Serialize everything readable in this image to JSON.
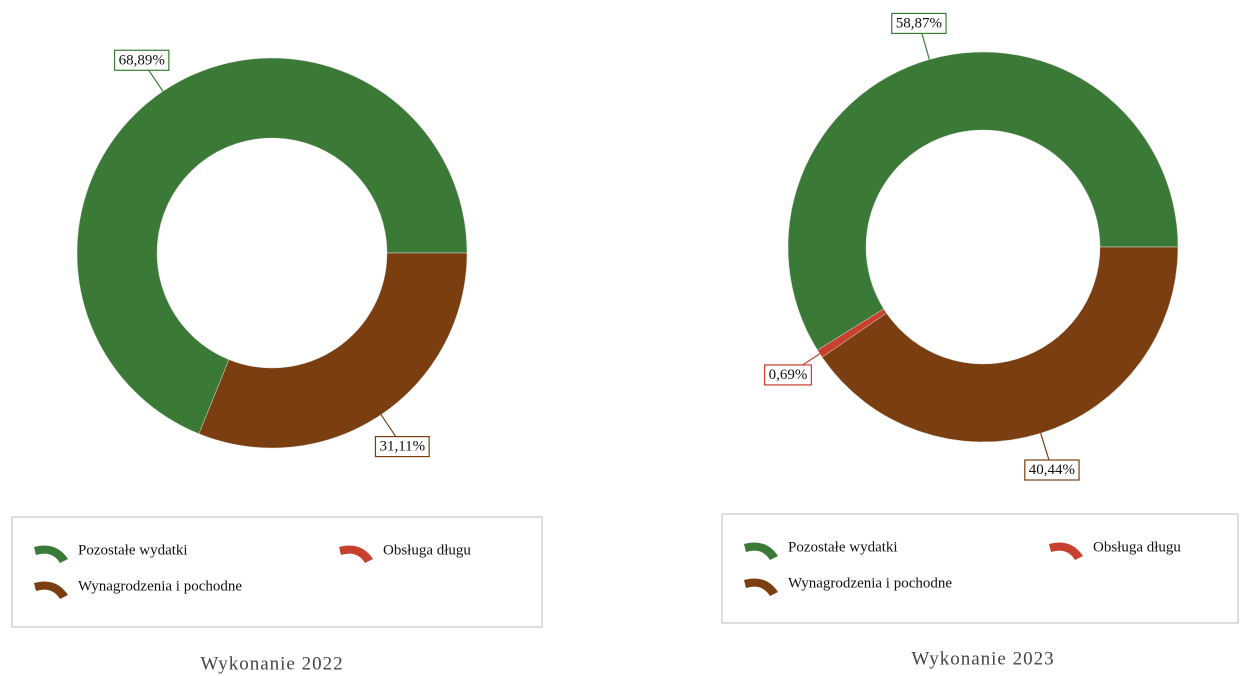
{
  "chart_data": [
    {
      "type": "donut",
      "title": "Wykonanie 2022",
      "categories": [
        "Pozostałe wydatki",
        "Obsługa długu",
        "Wynagrodzenia i pochodne"
      ],
      "values": [
        68.89,
        0,
        31.11
      ],
      "value_labels": [
        "68,89%",
        null,
        "31,11%"
      ],
      "colors": [
        "#3b7a36",
        "#c8402e",
        "#7a3e10"
      ]
    },
    {
      "type": "donut",
      "title": "Wykonanie 2023",
      "categories": [
        "Pozostałe wydatki",
        "Obsługa długu",
        "Wynagrodzenia i pochodne"
      ],
      "values": [
        58.87,
        0.69,
        40.44
      ],
      "value_labels": [
        "58,87%",
        "0,69%",
        "40,44%"
      ],
      "colors": [
        "#3b7a36",
        "#c8402e",
        "#7a3e10"
      ]
    }
  ]
}
